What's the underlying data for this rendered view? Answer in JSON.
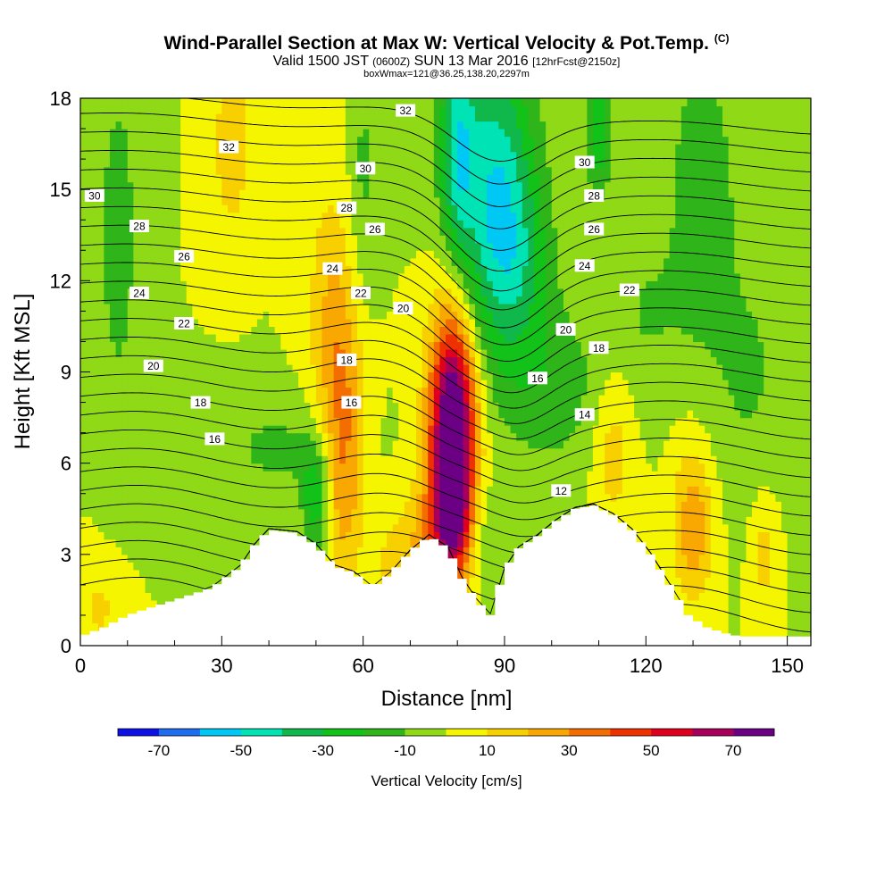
{
  "titles": {
    "line1": "Wind-Parallel Section at Max W: Vertical Velocity & Pot.Temp.",
    "line1_mark": "(C)",
    "line2_a": "Valid 1500 JST",
    "line2_b": "(0600Z)",
    "line2_c": "SUN 13 Mar 2016",
    "line2_d": "[12hrFcst@2150z]",
    "line3": "boxWmax=121@36.25,138.20,2297m"
  },
  "chart_data": {
    "type": "heatmap",
    "xlabel": "Distance [nm]",
    "ylabel": "Height [Kft MSL]",
    "xlim": [
      0,
      155
    ],
    "ylim": [
      0,
      18
    ],
    "x_ticks": [
      0,
      30,
      60,
      90,
      120,
      150
    ],
    "y_ticks": [
      0,
      3,
      6,
      9,
      12,
      15,
      18
    ],
    "colorbar": {
      "label": "Vertical Velocity [cm/s]",
      "tick_labels": [
        "-70",
        "-50",
        "-30",
        "-10",
        "10",
        "30",
        "50",
        "70"
      ],
      "tick_values": [
        -70,
        -50,
        -30,
        -10,
        10,
        30,
        50,
        70
      ],
      "boundaries": [
        -80,
        -70,
        -60,
        -50,
        -40,
        -30,
        -20,
        -10,
        0,
        10,
        20,
        30,
        40,
        50,
        60,
        70,
        80
      ],
      "colors": [
        "#0c12e6",
        "#1e6cf0",
        "#00c8f5",
        "#00e3b5",
        "#10b84c",
        "#12c218",
        "#2fb51a",
        "#8fd916",
        "#f5f500",
        "#f8d000",
        "#f8a800",
        "#f46d00",
        "#ef3000",
        "#e0001e",
        "#a8005a",
        "#6c0085"
      ]
    },
    "terrain": [
      [
        0,
        0.3
      ],
      [
        5,
        0.6
      ],
      [
        10,
        1.0
      ],
      [
        16,
        1.3
      ],
      [
        22,
        1.6
      ],
      [
        28,
        1.9
      ],
      [
        34,
        2.6
      ],
      [
        37,
        3.3
      ],
      [
        40,
        3.8
      ],
      [
        46,
        3.7
      ],
      [
        50,
        3.3
      ],
      [
        54,
        2.6
      ],
      [
        58,
        2.4
      ],
      [
        62,
        1.9
      ],
      [
        66,
        2.4
      ],
      [
        70,
        3.1
      ],
      [
        74,
        3.6
      ],
      [
        78,
        3.2
      ],
      [
        81,
        2.2
      ],
      [
        84,
        1.5
      ],
      [
        87,
        1.0
      ],
      [
        90,
        2.5
      ],
      [
        93,
        3.2
      ],
      [
        97,
        3.6
      ],
      [
        101,
        4.1
      ],
      [
        105,
        4.5
      ],
      [
        109,
        4.6
      ],
      [
        113,
        4.3
      ],
      [
        117,
        3.8
      ],
      [
        121,
        3.0
      ],
      [
        125,
        2.0
      ],
      [
        129,
        1.0
      ],
      [
        133,
        0.6
      ],
      [
        137,
        0.4
      ],
      [
        140,
        0.3
      ]
    ],
    "w_field": {
      "background": 0,
      "anomalies": [
        {
          "x": 79,
          "y": 7.0,
          "sx": 3.5,
          "sy": 2.8,
          "w": 95
        },
        {
          "x": 79,
          "y": 4.0,
          "sx": 2.5,
          "sy": 1.5,
          "w": 25
        },
        {
          "x": 56,
          "y": 6.5,
          "sx": 3.0,
          "sy": 3.0,
          "w": 32
        },
        {
          "x": 53,
          "y": 11.0,
          "sx": 3.5,
          "sy": 3.0,
          "w": 18
        },
        {
          "x": 75,
          "y": 3.8,
          "sx": 5.0,
          "sy": 1.2,
          "w": 20
        },
        {
          "x": 67,
          "y": 2.5,
          "sx": 3.0,
          "sy": 1.0,
          "w": 15
        },
        {
          "x": 32,
          "y": 16.5,
          "sx": 2.5,
          "sy": 2.0,
          "w": 20
        },
        {
          "x": 130,
          "y": 4.0,
          "sx": 3.0,
          "sy": 1.8,
          "w": 28
        },
        {
          "x": 113,
          "y": 6.5,
          "sx": 3.0,
          "sy": 2.0,
          "w": 16
        },
        {
          "x": 145,
          "y": 3.0,
          "sx": 2.0,
          "sy": 1.5,
          "w": 14
        },
        {
          "x": 4,
          "y": 1.2,
          "sx": 3.0,
          "sy": 1.0,
          "w": 12
        },
        {
          "x": 88,
          "y": 15.0,
          "sx": 6.0,
          "sy": 3.5,
          "w": -48
        },
        {
          "x": 80,
          "y": 16.5,
          "sx": 2.5,
          "sy": 2.5,
          "w": -35
        },
        {
          "x": 93,
          "y": 12.5,
          "sx": 5.0,
          "sy": 2.0,
          "w": -18
        },
        {
          "x": 110,
          "y": 17.0,
          "sx": 2.0,
          "sy": 1.5,
          "w": -30
        },
        {
          "x": 100,
          "y": 8.5,
          "sx": 8.0,
          "sy": 2.0,
          "w": -16
        },
        {
          "x": 8,
          "y": 13.5,
          "sx": 3.0,
          "sy": 4.0,
          "w": -16
        },
        {
          "x": 132,
          "y": 15.0,
          "sx": 5.0,
          "sy": 3.5,
          "w": -18
        },
        {
          "x": 50,
          "y": 4.8,
          "sx": 2.0,
          "sy": 1.2,
          "w": -30
        },
        {
          "x": 85,
          "y": 3.5,
          "sx": 2.5,
          "sy": 1.5,
          "w": -12
        },
        {
          "x": 60,
          "y": 15.5,
          "sx": 2.0,
          "sy": 3.0,
          "w": -12
        },
        {
          "x": 42,
          "y": 6.5,
          "sx": 10.0,
          "sy": 1.2,
          "w": -12
        },
        {
          "x": 142,
          "y": 9.0,
          "sx": 6.0,
          "sy": 3.0,
          "w": -11
        },
        {
          "x": 120,
          "y": 11.0,
          "sx": 6.0,
          "sy": 2.0,
          "w": -10
        }
      ]
    },
    "theta_contours": {
      "levels": [
        10,
        11,
        12,
        13,
        14,
        15,
        16,
        17,
        18,
        19,
        20,
        21,
        22,
        23,
        24,
        25,
        26,
        27,
        28,
        29,
        30,
        31,
        32,
        33,
        34,
        35,
        36
      ],
      "left_base": 2.0,
      "right_base": 0.8,
      "pert": [
        {
          "x": 88,
          "y": 12.0,
          "sx": 9.0,
          "sy": 6.0,
          "a": -2.2
        },
        {
          "x": 86,
          "y": 6.0,
          "sx": 6.0,
          "sy": 3.0,
          "a": 0.7
        },
        {
          "x": 60,
          "y": 8.5,
          "sx": 10.0,
          "sy": 4.0,
          "a": 0.4
        }
      ],
      "labels": [
        {
          "text": "30",
          "x": 3,
          "y": 14.8
        },
        {
          "text": "28",
          "x": 12.5,
          "y": 13.8
        },
        {
          "text": "26",
          "x": 22,
          "y": 12.8
        },
        {
          "text": "24",
          "x": 12.5,
          "y": 11.6
        },
        {
          "text": "22",
          "x": 22,
          "y": 10.6
        },
        {
          "text": "20",
          "x": 15.5,
          "y": 9.2
        },
        {
          "text": "18",
          "x": 25.5,
          "y": 8.0
        },
        {
          "text": "16",
          "x": 28.5,
          "y": 6.8
        },
        {
          "text": "32",
          "x": 31.5,
          "y": 16.4
        },
        {
          "text": "30",
          "x": 60.5,
          "y": 15.7
        },
        {
          "text": "28",
          "x": 56.5,
          "y": 14.4
        },
        {
          "text": "26",
          "x": 62.5,
          "y": 13.7
        },
        {
          "text": "24",
          "x": 53.5,
          "y": 12.4
        },
        {
          "text": "22",
          "x": 59.5,
          "y": 11.6
        },
        {
          "text": "20",
          "x": 68.5,
          "y": 11.1
        },
        {
          "text": "18",
          "x": 56.5,
          "y": 9.4
        },
        {
          "text": "16",
          "x": 57.5,
          "y": 8.0
        },
        {
          "text": "32",
          "x": 69,
          "y": 17.6
        },
        {
          "text": "30",
          "x": 107,
          "y": 15.9
        },
        {
          "text": "28",
          "x": 109,
          "y": 14.8
        },
        {
          "text": "26",
          "x": 109,
          "y": 13.7
        },
        {
          "text": "24",
          "x": 107,
          "y": 12.5
        },
        {
          "text": "22",
          "x": 116.5,
          "y": 11.7
        },
        {
          "text": "20",
          "x": 103,
          "y": 10.4
        },
        {
          "text": "18",
          "x": 110,
          "y": 9.8
        },
        {
          "text": "16",
          "x": 97,
          "y": 8.8
        },
        {
          "text": "14",
          "x": 107,
          "y": 7.6
        },
        {
          "text": "12",
          "x": 102,
          "y": 5.1
        }
      ]
    }
  }
}
